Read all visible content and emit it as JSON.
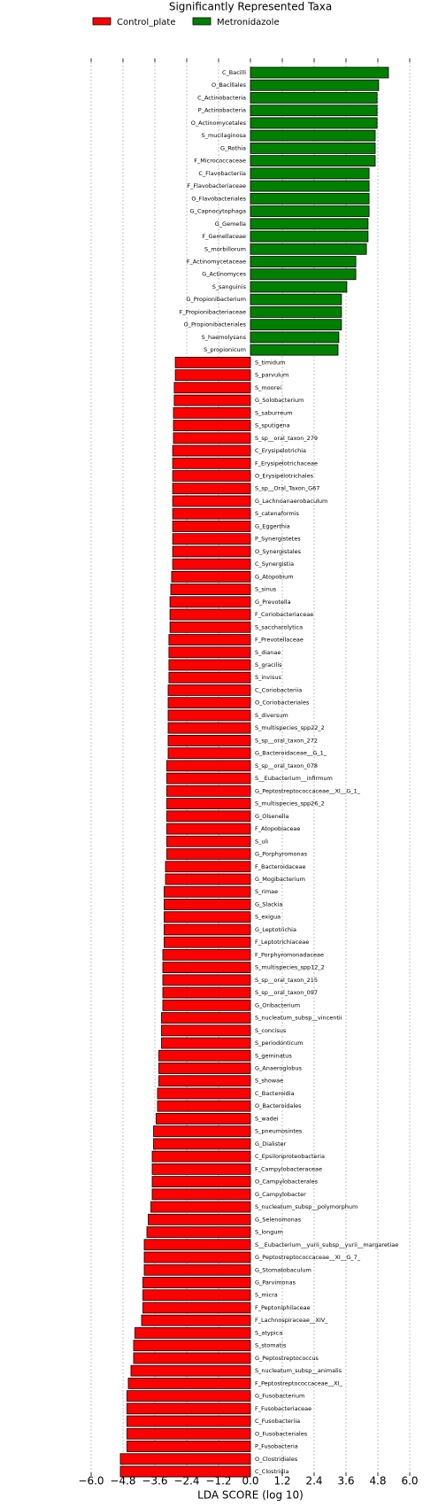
{
  "chart_data": {
    "type": "barh",
    "title": "Significantly Represented Taxa",
    "xlabel": "LDA SCORE (log 10)",
    "categories": [
      "C_Bacilli",
      "O_Bacillales",
      "C_Actinobacteria",
      "P_Actinobacteria",
      "O_Actinomycetales",
      "S_mucilaginosa",
      "G_Rothia",
      "F_Micrococcaceae",
      "C_Flavobacteriia",
      "F_Flavobacteriaceae",
      "O_Flavobacteriales",
      "G_Capnocytophaga",
      "G_Gemella",
      "F_Gemellaceae",
      "S_morbillorum",
      "F_Actinomycetaceae",
      "G_Actinomyces",
      "S_sanguinis",
      "G_Propionibacterium",
      "F_Propionibacteriaceae",
      "O_Propionibacteriales",
      "S_haemolysans",
      "S_propionicum",
      "S_timidum",
      "S_parvulum",
      "S_moorei",
      "G_Solobacterium",
      "S_saburreum",
      "S_sputigena",
      "S_sp__oral_taxon_279",
      "C_Erysipelotrichia",
      "F_Erysipelotrichaceae",
      "O_Erysipelotrichales",
      "S_sp__Oral_Taxon_G67",
      "G_Lachnoanaerobaculum",
      "S_catenaformis",
      "G_Eggerthia",
      "P_Synergistetes",
      "O_Synergistales",
      "C_Synergistia",
      "G_Atopobium",
      "S_sinus",
      "G_Prevotella",
      "F_Coriobacteriaceae",
      "S_saccharolytica",
      "F_Prevotellaceae",
      "S_dianae",
      "S_gracilis",
      "S_invisus",
      "C_Coriobacteriia",
      "O_Coriobacteriales",
      "S_diversum",
      "S_multispecies_spp22_2",
      "S_sp__oral_taxon_272",
      "G_Bacteroidaceae__G_1_",
      "S_sp__oral_taxon_078",
      "S__Eubacterium__infirmum",
      "G_Peptostreptococcaceae__XI__G_1_",
      "S_multispecies_spp26_2",
      "G_Olsenella",
      "F_Atopobiaceae",
      "S_uli",
      "G_Porphyromonas",
      "F_Bacteroidaceae",
      "G_Mogibacterium",
      "S_rimae",
      "G_Slackia",
      "S_exigua",
      "G_Leptotrichia",
      "F_Leptotrichiaceae",
      "F_Porphyromonadaceae",
      "S_multispecies_spp12_2",
      "S_sp__oral_taxon_215",
      "S_sp__oral_taxon_097",
      "G_Oribacterium",
      "S_nucleatum_subsp__vincentii",
      "S_concisus",
      "S_periodonticum",
      "S_geminatus",
      "G_Anaeroglobus",
      "S_showae",
      "C_Bacteroidia",
      "O_Bacteroidales",
      "S_wadei",
      "S_pneumosintes",
      "G_Dialister",
      "C_Epsilonproteobacteria",
      "F_Campylobacteraceae",
      "O_Campylobacterales",
      "G_Campylobacter",
      "S_nucleatum_subsp__polymorphum",
      "G_Selenomonas",
      "S_longum",
      "S__Eubacterium__yurii_subsp__yurii__margaretiae",
      "G_Peptostreptococcaceae__XI__G_7_",
      "G_Stomatobaculum",
      "G_Parvimonas",
      "S_micra",
      "F_Peptoniphilaceae",
      "F_Lachnospiraceae__XIV_",
      "S_atypica",
      "S_stomatis",
      "G_Peptostreptococcus",
      "S_nucleatum_subsp__animalis",
      "F_Peptostreptococcaceae__XI_",
      "G_Fusobacterium",
      "F_Fusobacteriaceae",
      "C_Fusobacteriia",
      "O_Fusobacteriales",
      "P_Fusobacteria",
      "O_Clostridiales",
      "C_Clostridia"
    ],
    "series": [
      {
        "name": "Control_plate",
        "color": "#ff0000",
        "values": [
          null,
          null,
          null,
          null,
          null,
          null,
          null,
          null,
          null,
          null,
          null,
          null,
          null,
          null,
          null,
          null,
          null,
          null,
          null,
          null,
          null,
          null,
          null,
          -2.83,
          -2.83,
          -2.87,
          -2.87,
          -2.9,
          -2.9,
          -2.9,
          -2.93,
          -2.93,
          -2.93,
          -2.93,
          -2.93,
          -2.93,
          -2.93,
          -2.93,
          -2.93,
          -2.93,
          -2.97,
          -3.0,
          -3.03,
          -3.03,
          -3.03,
          -3.07,
          -3.07,
          -3.07,
          -3.07,
          -3.1,
          -3.1,
          -3.1,
          -3.1,
          -3.1,
          -3.1,
          -3.15,
          -3.15,
          -3.15,
          -3.15,
          -3.15,
          -3.15,
          -3.15,
          -3.15,
          -3.2,
          -3.2,
          -3.25,
          -3.25,
          -3.25,
          -3.25,
          -3.25,
          -3.3,
          -3.3,
          -3.3,
          -3.3,
          -3.3,
          -3.35,
          -3.35,
          -3.35,
          -3.45,
          -3.45,
          -3.45,
          -3.5,
          -3.5,
          -3.55,
          -3.65,
          -3.65,
          -3.7,
          -3.7,
          -3.7,
          -3.7,
          -3.75,
          -3.85,
          -3.9,
          -4.0,
          -4.0,
          -4.0,
          -4.05,
          -4.05,
          -4.05,
          -4.1,
          -4.35,
          -4.4,
          -4.4,
          -4.5,
          -4.6,
          -4.65,
          -4.65,
          -4.65,
          -4.65,
          -4.65,
          -4.9,
          -4.9
        ]
      },
      {
        "name": "Metronidazole",
        "color": "#008000",
        "values": [
          5.2,
          4.83,
          4.77,
          4.77,
          4.77,
          4.7,
          4.7,
          4.7,
          4.47,
          4.47,
          4.47,
          4.47,
          4.43,
          4.43,
          4.37,
          3.97,
          3.97,
          3.63,
          3.43,
          3.43,
          3.43,
          3.33,
          3.3,
          null,
          null,
          null,
          null,
          null,
          null,
          null,
          null,
          null,
          null,
          null,
          null,
          null,
          null,
          null,
          null,
          null,
          null,
          null,
          null,
          null,
          null,
          null,
          null,
          null,
          null,
          null,
          null,
          null,
          null,
          null,
          null,
          null,
          null,
          null,
          null,
          null,
          null,
          null,
          null,
          null,
          null,
          null,
          null,
          null,
          null,
          null,
          null,
          null,
          null,
          null,
          null,
          null,
          null,
          null,
          null,
          null,
          null,
          null,
          null,
          null,
          null,
          null,
          null,
          null,
          null,
          null,
          null,
          null,
          null,
          null,
          null,
          null,
          null,
          null,
          null,
          null,
          null,
          null,
          null,
          null,
          null,
          null,
          null,
          null,
          null,
          null,
          null,
          null
        ]
      }
    ],
    "xlim": [
      -6.0,
      6.0
    ],
    "xticks": [
      {
        "value": -6.0,
        "label": "−6.0"
      },
      {
        "value": -4.8,
        "label": "−4.8"
      },
      {
        "value": -3.6,
        "label": "−3.6"
      },
      {
        "value": -2.4,
        "label": "−2.4"
      },
      {
        "value": -1.2,
        "label": "−1.2"
      },
      {
        "value": 0,
        "label": "0.0"
      },
      {
        "value": 1.2,
        "label": "1.2"
      },
      {
        "value": 2.4,
        "label": "2.4"
      },
      {
        "value": 3.6,
        "label": "3.6"
      },
      {
        "value": 4.8,
        "label": "4.8"
      },
      {
        "value": 6.0,
        "label": "6.0"
      }
    ],
    "grid": true
  }
}
